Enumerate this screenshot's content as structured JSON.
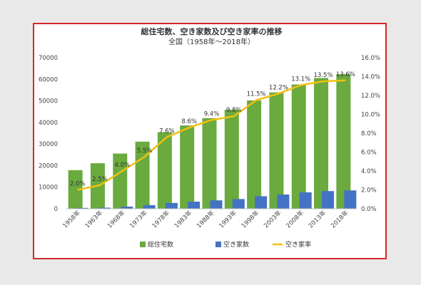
{
  "chart_data": {
    "type": "bar",
    "title": "総住宅数、空き家数及び空き家率の推移",
    "subtitle": "全国（1958年～2018年）",
    "categories": [
      "1958年",
      "1963年",
      "1968年",
      "1973年",
      "1978年",
      "1983年",
      "1988年",
      "1993年",
      "1998年",
      "2003年",
      "2008年",
      "2013年",
      "2018年"
    ],
    "series": [
      {
        "name": "総住宅数",
        "type": "bar",
        "axis": "left",
        "color": "#6aaa3e",
        "values": [
          17900,
          21100,
          25600,
          31100,
          35500,
          38600,
          42000,
          45900,
          50200,
          53900,
          57600,
          60600,
          62400
        ]
      },
      {
        "name": "空き家数",
        "type": "bar",
        "axis": "left",
        "color": "#4472c4",
        "values": [
          400,
          500,
          1000,
          1700,
          2700,
          3300,
          3900,
          4500,
          5800,
          6600,
          7600,
          8200,
          8500
        ]
      },
      {
        "name": "空き家率",
        "type": "line",
        "axis": "right",
        "color": "#f2c011",
        "values": [
          2.0,
          2.5,
          4.0,
          5.5,
          7.6,
          8.6,
          9.4,
          9.8,
          11.5,
          12.2,
          13.1,
          13.5,
          13.6
        ],
        "labels": [
          "2.0%",
          "2.5%",
          "4.0%",
          "5.5%",
          "7.6%",
          "8.6%",
          "9.4%",
          "9.8%",
          "11.5%",
          "12.2%",
          "13.1%",
          "13.5%",
          "13.6%"
        ]
      }
    ],
    "y_left": {
      "min": 0,
      "max": 70000,
      "ticks": [
        0,
        10000,
        20000,
        30000,
        40000,
        50000,
        60000,
        70000
      ],
      "tick_labels": [
        "0",
        "10000",
        "20000",
        "30000",
        "40000",
        "50000",
        "60000",
        "70000"
      ]
    },
    "y_right": {
      "min": 0,
      "max": 16,
      "ticks": [
        0,
        2,
        4,
        6,
        8,
        10,
        12,
        14,
        16
      ],
      "tick_labels": [
        "0.0%",
        "2.0%",
        "4.0%",
        "6.0%",
        "8.0%",
        "10.0%",
        "12.0%",
        "14.0%",
        "16.0%"
      ]
    },
    "legend_position": "bottom",
    "grid": false
  }
}
